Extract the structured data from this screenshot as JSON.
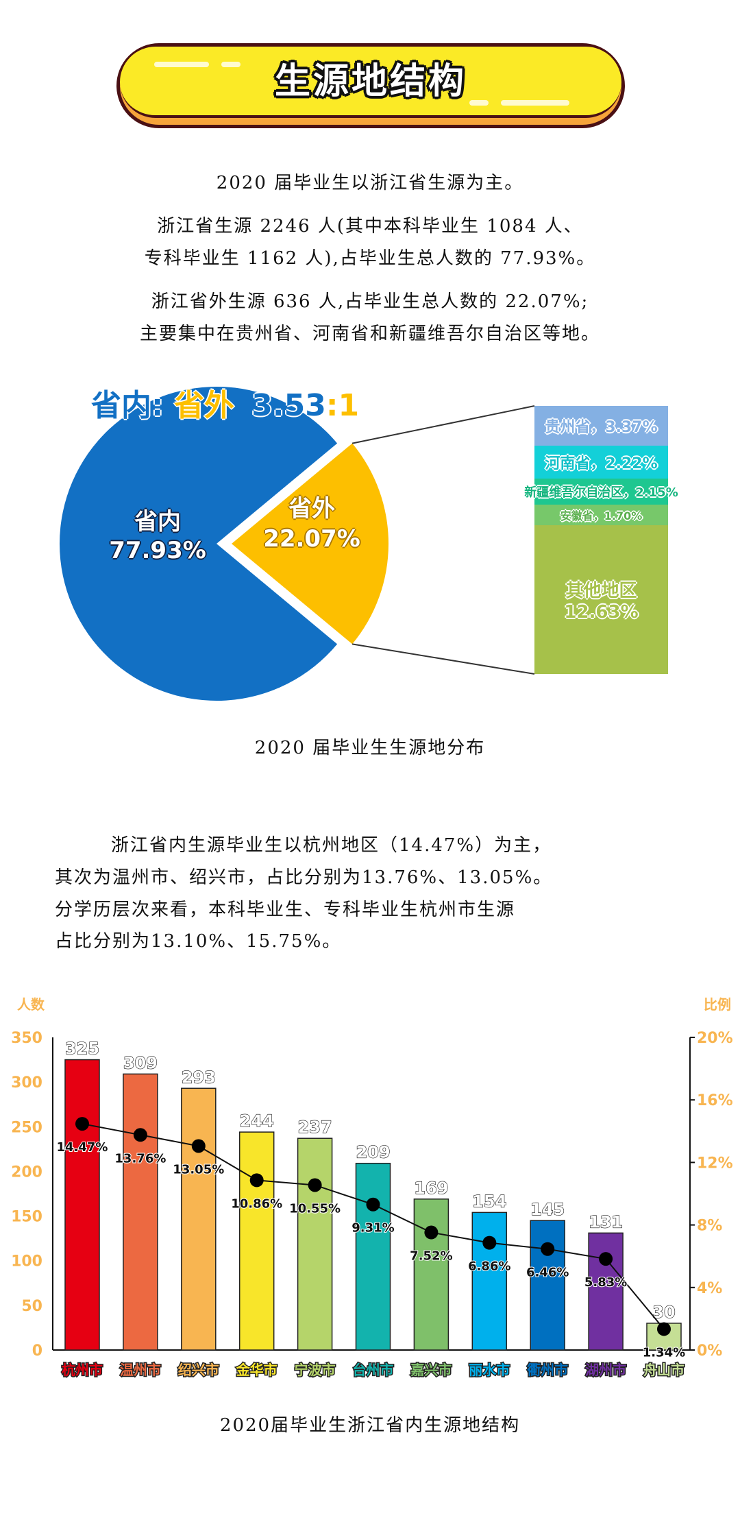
{
  "header": {
    "title": "生源地结构"
  },
  "intro": {
    "line1": "2020 届毕业生以浙江省生源为主。",
    "line2": "浙江省生源 2246 人(其中本科毕业生 1084 人、",
    "line3": "专科毕业生 1162 人),占毕业生总人数的 77.93%。",
    "line4": "浙江省外生源 636 人,占毕业生总人数的 22.07%;",
    "line5": "主要集中在贵州省、河南省和新疆维吾尔自治区等地。"
  },
  "ratio": {
    "inside": "省内",
    "sep": ":",
    "outside": "省外",
    "value_a": "3.53",
    "colon": ":",
    "value_b": "1"
  },
  "chart_data": [
    {
      "type": "pie",
      "title": "2020 届毕业生生源地分布",
      "slices": [
        {
          "name": "省内",
          "value": 77.93,
          "label": "77.93%",
          "color": "#1270c4"
        },
        {
          "name": "省外",
          "value": 22.07,
          "label": "22.07%",
          "color": "#fdbf00"
        }
      ],
      "breakdown": [
        {
          "name": "贵州省",
          "value": 3.37,
          "label": "贵州省，3.37%",
          "color": "#84b0e3"
        },
        {
          "name": "河南省",
          "value": 2.22,
          "label": "河南省，2.22%",
          "color": "#13d0d8"
        },
        {
          "name": "新疆维吾尔自治区",
          "value": 2.15,
          "label": "新疆维吾尔自治区，2.15%",
          "color": "#1ec790"
        },
        {
          "name": "安徽省",
          "value": 1.7,
          "label": "安徽省，1.70%",
          "color": "#77c86a"
        },
        {
          "name": "其他地区",
          "value": 12.63,
          "label": "12.63%",
          "color": "#a6c14a"
        }
      ]
    },
    {
      "type": "bar",
      "title": "2020届毕业生浙江省内生源地结构",
      "ylabel": "人数",
      "y2label": "比例",
      "ylim": [
        0,
        350
      ],
      "yticks": [
        "0",
        "50",
        "100",
        "150",
        "200",
        "250",
        "300",
        "350"
      ],
      "y2lim": [
        0,
        20
      ],
      "y2ticks": [
        "0%",
        "4%",
        "8%",
        "12%",
        "16%",
        "20%"
      ],
      "categories": [
        "杭州市",
        "温州市",
        "绍兴市",
        "金华市",
        "宁波市",
        "台州市",
        "嘉兴市",
        "丽水市",
        "衢州市",
        "湖州市",
        "舟山市"
      ],
      "values": [
        325,
        309,
        293,
        244,
        237,
        209,
        169,
        154,
        145,
        131,
        30
      ],
      "percents": [
        14.47,
        13.76,
        13.05,
        10.86,
        10.55,
        9.31,
        7.52,
        6.86,
        6.46,
        5.83,
        1.34
      ],
      "percent_labels": [
        "14.47%",
        "13.76%",
        "13.05%",
        "10.86%",
        "10.55%",
        "9.31%",
        "7.52%",
        "6.86%",
        "6.46%",
        "5.83%",
        "1.34%"
      ],
      "colors": [
        "#e60012",
        "#ec6941",
        "#f8b551",
        "#f8e52a",
        "#b5d46a",
        "#13b3ad",
        "#7fc06a",
        "#00b0ec",
        "#0070c0",
        "#7030a0",
        "#c5df95"
      ],
      "axis_color": "#f8b551"
    }
  ],
  "body": {
    "line1": "浙江省内生源毕业生以杭州地区（14.47%）为主，",
    "line2": "其次为温州市、绍兴市，占比分别为13.76%、13.05%。",
    "line3": "分学历层次来看，本科毕业生、专科毕业生杭州市生源",
    "line4": "占比分别为13.10%、15.75%。"
  }
}
